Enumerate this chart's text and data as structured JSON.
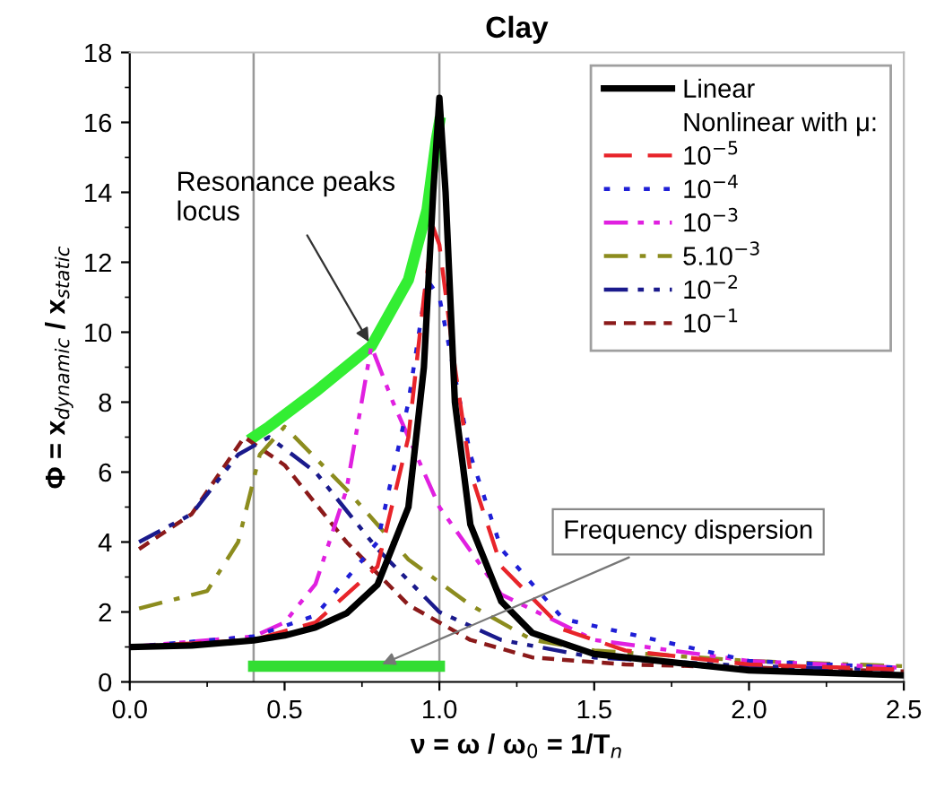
{
  "chart_data": {
    "type": "line",
    "title": "Clay",
    "xlabel": "ν = ω / ω$_{0}$ = 1/T$_{n}$",
    "ylabel": "Φ = x$_{dynamic}$ / x$_{static}$",
    "legend_title": "Nonlinear with μ:",
    "xlim": [
      0,
      2.5
    ],
    "ylim": [
      0,
      18
    ],
    "xticks": [
      {
        "value": 0,
        "label": "0.0"
      },
      {
        "value": 0.5,
        "label": "0.5"
      },
      {
        "value": 1.0,
        "label": "1.0"
      },
      {
        "value": 1.5,
        "label": "1.5"
      },
      {
        "value": 2.0,
        "label": "2.0"
      },
      {
        "value": 2.5,
        "label": "2.5"
      }
    ],
    "yticks": [
      0,
      2,
      4,
      6,
      8,
      10,
      12,
      14,
      16,
      18
    ],
    "grid": false,
    "legend": "top right",
    "series": [
      {
        "name": "Linear",
        "color": "#000000",
        "line_style": "solid",
        "x": [
          0,
          0.2,
          0.4,
          0.5,
          0.6,
          0.7,
          0.8,
          0.9,
          0.95,
          0.98,
          1.0,
          1.02,
          1.05,
          1.1,
          1.2,
          1.3,
          1.5,
          2.0,
          2.5
        ],
        "values": [
          1.0,
          1.04,
          1.19,
          1.33,
          1.56,
          1.96,
          2.78,
          5.0,
          9.0,
          14.0,
          16.7,
          14.0,
          8.0,
          4.5,
          2.3,
          1.4,
          0.8,
          0.33,
          0.19
        ]
      },
      {
        "name": "10$^{−5}$",
        "color": "#e8242a",
        "line_style": "dashed",
        "x": [
          0,
          0.4,
          0.6,
          0.8,
          0.9,
          0.95,
          0.98,
          1.0,
          1.05,
          1.1,
          1.2,
          1.4,
          1.6,
          2.0,
          2.5
        ],
        "values": [
          1.0,
          1.2,
          1.7,
          3.3,
          7.0,
          11.0,
          13.0,
          12.5,
          9.0,
          6.0,
          3.3,
          1.5,
          0.9,
          0.5,
          0.35
        ]
      },
      {
        "name": "10$^{−4}$",
        "color": "#1f1fd6",
        "line_style": "dotted",
        "x": [
          0,
          0.4,
          0.6,
          0.8,
          0.9,
          0.96,
          1.0,
          1.1,
          1.2,
          1.4,
          2.0,
          2.5
        ],
        "values": [
          1.0,
          1.3,
          1.9,
          4.0,
          8.0,
          11.5,
          11.0,
          6.5,
          3.8,
          1.8,
          0.6,
          0.4
        ]
      },
      {
        "name": "10$^{−3}$",
        "color": "#e020e0",
        "line_style": "dashdotdot",
        "x": [
          0,
          0.4,
          0.5,
          0.6,
          0.7,
          0.78,
          0.85,
          1.0,
          1.2,
          1.5,
          2.0,
          2.5
        ],
        "values": [
          1.0,
          1.3,
          1.7,
          2.8,
          5.5,
          9.6,
          8.0,
          5.0,
          2.5,
          1.2,
          0.6,
          0.4
        ]
      },
      {
        "name": "5.10$^{−3}$",
        "color": "#8c8c1e",
        "line_style": "dashdot",
        "x": [
          0.03,
          0.25,
          0.35,
          0.42,
          0.5,
          0.7,
          0.9,
          1.1,
          1.3,
          1.5,
          2.0,
          2.5
        ],
        "values": [
          2.1,
          2.6,
          4.0,
          6.5,
          7.3,
          5.5,
          3.5,
          2.2,
          1.2,
          0.9,
          0.6,
          0.45
        ]
      },
      {
        "name": "10$^{−2}$",
        "color": "#1a1a8c",
        "line_style": "dashdotdot",
        "x": [
          0.03,
          0.2,
          0.35,
          0.45,
          0.6,
          0.8,
          1.0,
          1.2,
          1.5,
          2.0,
          2.5
        ],
        "values": [
          4.0,
          4.8,
          6.5,
          7.0,
          6.0,
          3.8,
          2.0,
          1.2,
          0.7,
          0.45,
          0.35
        ]
      },
      {
        "name": "10$^{−1}$",
        "color": "#8b1a1a",
        "line_style": "shortdash",
        "x": [
          0.03,
          0.2,
          0.37,
          0.5,
          0.7,
          0.9,
          1.1,
          1.3,
          1.6,
          2.5
        ],
        "values": [
          3.8,
          4.8,
          7.0,
          6.2,
          4.0,
          2.2,
          1.2,
          0.7,
          0.5,
          0.3
        ]
      },
      {
        "color": "#33ee33",
        "line_style": "solid",
        "x": [
          0.4,
          0.45,
          0.6,
          0.78,
          0.9,
          0.96,
          0.99,
          1.0
        ],
        "values": [
          7.0,
          7.3,
          8.3,
          9.6,
          11.5,
          13.5,
          15.5,
          16.0
        ]
      },
      {
        "color": "#33dd33",
        "line_style": "solid",
        "x": [
          0.4,
          1.0
        ],
        "values": [
          0.45,
          0.45
        ]
      }
    ],
    "ref_lines": [
      {
        "axis": "x",
        "value": 0.4,
        "color": "#999999"
      },
      {
        "axis": "x",
        "value": 1.0,
        "color": "#999999"
      }
    ],
    "annotations": [
      {
        "text": "Resonance peaks\nlocus",
        "x": 0.78,
        "y": 9.6
      },
      {
        "text": "Frequency dispersion",
        "x": 0.8,
        "y": 0.45
      }
    ]
  }
}
